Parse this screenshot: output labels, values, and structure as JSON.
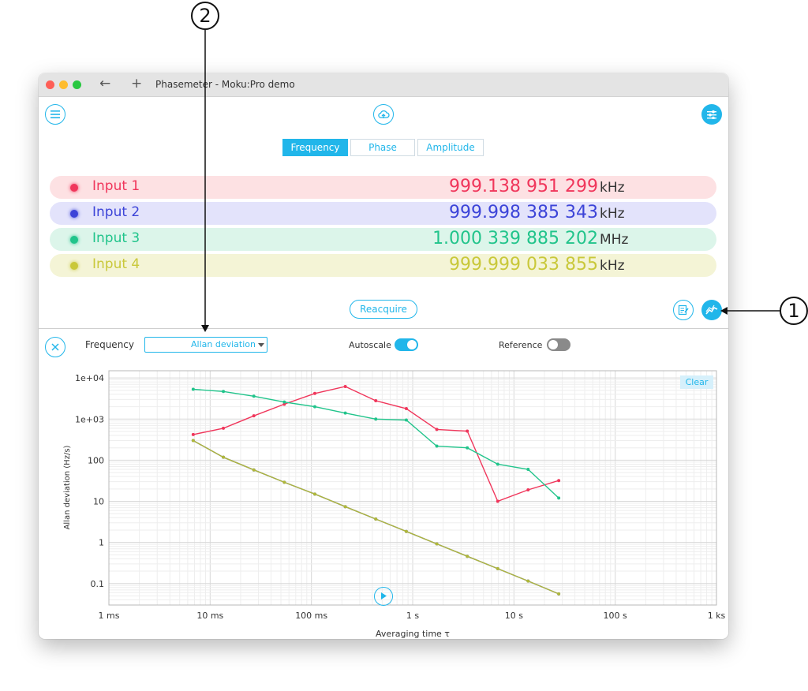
{
  "callouts": {
    "one": "1",
    "two": "2"
  },
  "window": {
    "title": "Phasemeter - Moku:Pro demo",
    "nav": {
      "back": "←",
      "new_tab": "+"
    }
  },
  "icons": {
    "menu": "menu-icon",
    "cloud": "cloud-upload-icon",
    "settings": "sliders-icon",
    "notes": "notes-icon",
    "chart": "chart-icon",
    "close": "close-icon",
    "play": "play-icon"
  },
  "tabs": [
    {
      "label": "Frequency",
      "active": true
    },
    {
      "label": "Phase",
      "active": false
    },
    {
      "label": "Amplitude",
      "active": false
    }
  ],
  "inputs": [
    {
      "label": "Input 1",
      "value": "999.138 951 299",
      "unit": "kHz",
      "color": "#f0365b",
      "bg": "#fde1e3"
    },
    {
      "label": "Input 2",
      "value": "999.998 385 343",
      "unit": "kHz",
      "color": "#3c44d8",
      "bg": "#e3e3fb"
    },
    {
      "label": "Input 3",
      "value": "1.000 339 885 202",
      "unit": "MHz",
      "color": "#21c48b",
      "bg": "#dcf5ea"
    },
    {
      "label": "Input 4",
      "value": "999.999 033 855",
      "unit": "kHz",
      "color": "#c9c83a",
      "bg": "#f4f4d6"
    }
  ],
  "reacquire_label": "Reacquire",
  "controls": {
    "measure_label": "Frequency",
    "dropdown_value": "Allan deviation",
    "autoscale_label": "Autoscale",
    "autoscale_on": true,
    "reference_label": "Reference",
    "reference_on": false,
    "clear_label": "Clear"
  },
  "accent": "#21b6ea",
  "chart_data": {
    "type": "line",
    "xlabel": "Averaging time τ",
    "ylabel": "Allan deviation (Hz/s)",
    "x_scale": "log",
    "y_scale": "log",
    "xlim": [
      0.001,
      1000
    ],
    "ylim": [
      0.03,
      15000
    ],
    "grid": true,
    "x_ticks": [
      0.001,
      0.01,
      0.1,
      1,
      10,
      100,
      1000
    ],
    "x_tick_labels": [
      "1 ms",
      "10 ms",
      "100 ms",
      "1 s",
      "10 s",
      "100 s",
      "1 ks"
    ],
    "y_ticks": [
      10000,
      1000,
      100,
      10,
      1,
      0.1
    ],
    "y_tick_labels": [
      "1e+04",
      "1e+03",
      "100",
      "10",
      "1",
      "0.1"
    ],
    "series": [
      {
        "color": "#f0365b",
        "x": [
          0.0068,
          0.0135,
          0.027,
          0.054,
          0.108,
          0.216,
          0.432,
          0.865,
          1.73,
          3.46,
          6.92,
          13.8,
          27.7
        ],
        "y": [
          420,
          600,
          1200,
          2300,
          4200,
          6200,
          2800,
          1800,
          560,
          510,
          10,
          19,
          32
        ]
      },
      {
        "color": "#21c48b",
        "x": [
          0.0068,
          0.0135,
          0.027,
          0.054,
          0.108,
          0.216,
          0.432,
          0.865,
          1.73,
          3.46,
          6.92,
          13.8,
          27.7
        ],
        "y": [
          5300,
          4700,
          3600,
          2600,
          2000,
          1400,
          1000,
          950,
          220,
          200,
          80,
          60,
          12
        ]
      },
      {
        "color": "#3c44d8",
        "x": [
          0.0068,
          0.0135,
          0.027,
          0.054,
          0.108,
          0.216,
          0.432,
          0.865,
          1.73,
          3.46,
          6.92,
          13.8,
          27.7
        ],
        "y": [
          300,
          118,
          58,
          29,
          15,
          7.4,
          3.7,
          1.85,
          0.92,
          0.46,
          0.23,
          0.115,
          0.056
        ]
      },
      {
        "color": "#b0b83a",
        "x": [
          0.0068,
          0.0135,
          0.027,
          0.054,
          0.108,
          0.216,
          0.432,
          0.865,
          1.73,
          3.46,
          6.92,
          13.8,
          27.7
        ],
        "y": [
          300,
          118,
          58,
          29,
          15,
          7.4,
          3.7,
          1.85,
          0.92,
          0.46,
          0.23,
          0.115,
          0.056
        ]
      }
    ]
  }
}
